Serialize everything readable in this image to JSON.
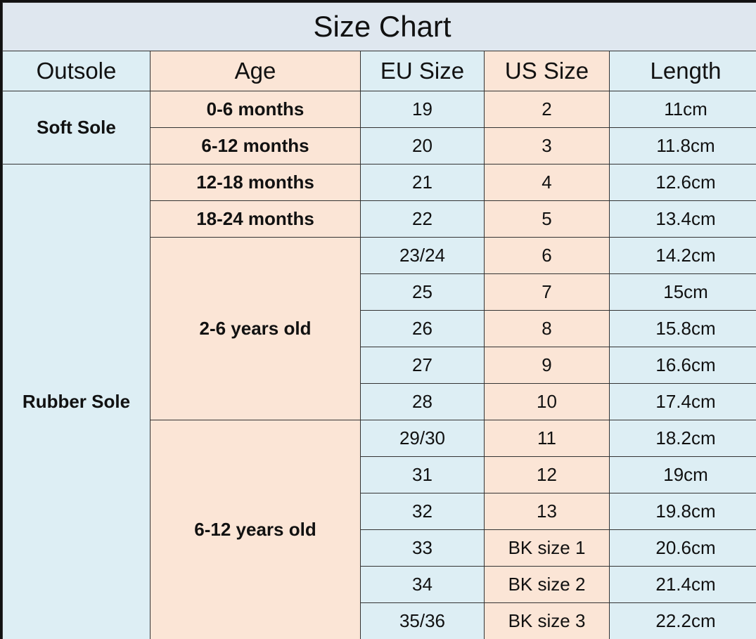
{
  "title": "Size Chart",
  "columns": [
    "Outsole",
    "Age",
    "EU Size",
    "US Size",
    "Length"
  ],
  "outsoles": [
    {
      "label": "Soft Sole",
      "ages": [
        {
          "label": "0-6 months",
          "sizes": [
            [
              "19",
              "2",
              "11cm"
            ]
          ]
        },
        {
          "label": "6-12 months",
          "sizes": [
            [
              "20",
              "3",
              "11.8cm"
            ]
          ]
        }
      ]
    },
    {
      "label": "Rubber Sole",
      "ages": [
        {
          "label": "12-18 months",
          "sizes": [
            [
              "21",
              "4",
              "12.6cm"
            ]
          ]
        },
        {
          "label": "18-24 months",
          "sizes": [
            [
              "22",
              "5",
              "13.4cm"
            ]
          ]
        },
        {
          "label": "2-6 years old",
          "sizes": [
            [
              "23/24",
              "6",
              "14.2cm"
            ],
            [
              "25",
              "7",
              "15cm"
            ],
            [
              "26",
              "8",
              "15.8cm"
            ],
            [
              "27",
              "9",
              "16.6cm"
            ],
            [
              "28",
              "10",
              "17.4cm"
            ]
          ]
        },
        {
          "label": "6-12 years old",
          "sizes": [
            [
              "29/30",
              "11",
              "18.2cm"
            ],
            [
              "31",
              "12",
              "19cm"
            ],
            [
              "32",
              "13",
              "19.8cm"
            ],
            [
              "33",
              "BK size 1",
              "20.6cm"
            ],
            [
              "34",
              "BK size 2",
              "21.4cm"
            ],
            [
              "35/36",
              "BK size 3",
              "22.2cm"
            ]
          ]
        }
      ]
    }
  ]
}
